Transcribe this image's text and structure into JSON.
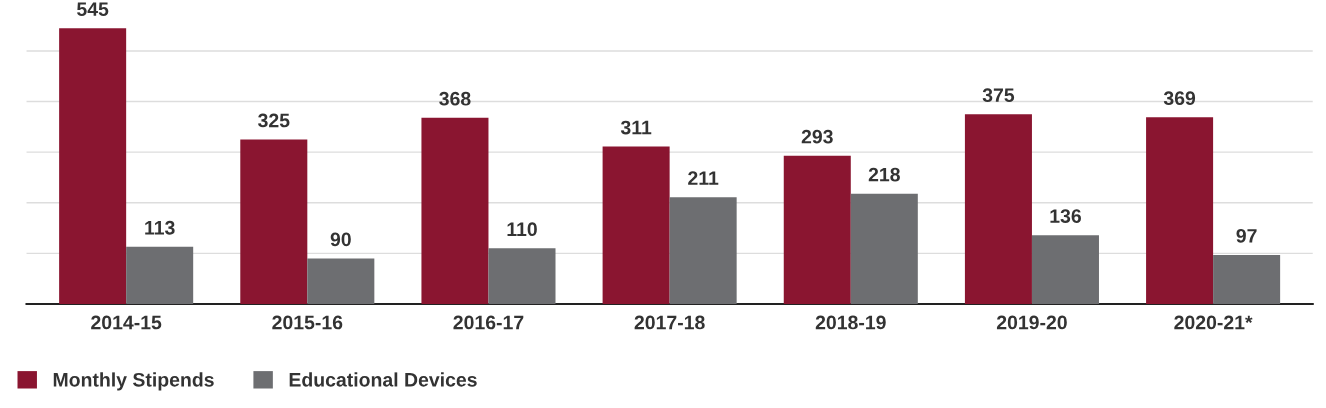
{
  "chart_data": {
    "type": "bar",
    "categories": [
      "2014-15",
      "2015-16",
      "2016-17",
      "2017-18",
      "2018-19",
      "2019-20",
      "2020-21*"
    ],
    "series": [
      {
        "name": "Monthly Stipends",
        "color": "#8a1530",
        "values": [
          545,
          325,
          368,
          311,
          293,
          375,
          369
        ]
      },
      {
        "name": "Educational Devices",
        "color": "#6d6e71",
        "values": [
          113,
          90,
          110,
          211,
          218,
          136,
          97
        ]
      }
    ],
    "yticks": [
      {
        "value": 0,
        "label": null
      },
      {
        "value": 100,
        "label": null
      },
      {
        "value": 200,
        "label": null
      },
      {
        "value": 300,
        "label": null
      },
      {
        "value": 400,
        "label": null
      },
      {
        "value": 500,
        "label": null
      }
    ],
    "tick_labels": "x",
    "grid": "y",
    "data_labels": true,
    "legend": "bottom left"
  }
}
